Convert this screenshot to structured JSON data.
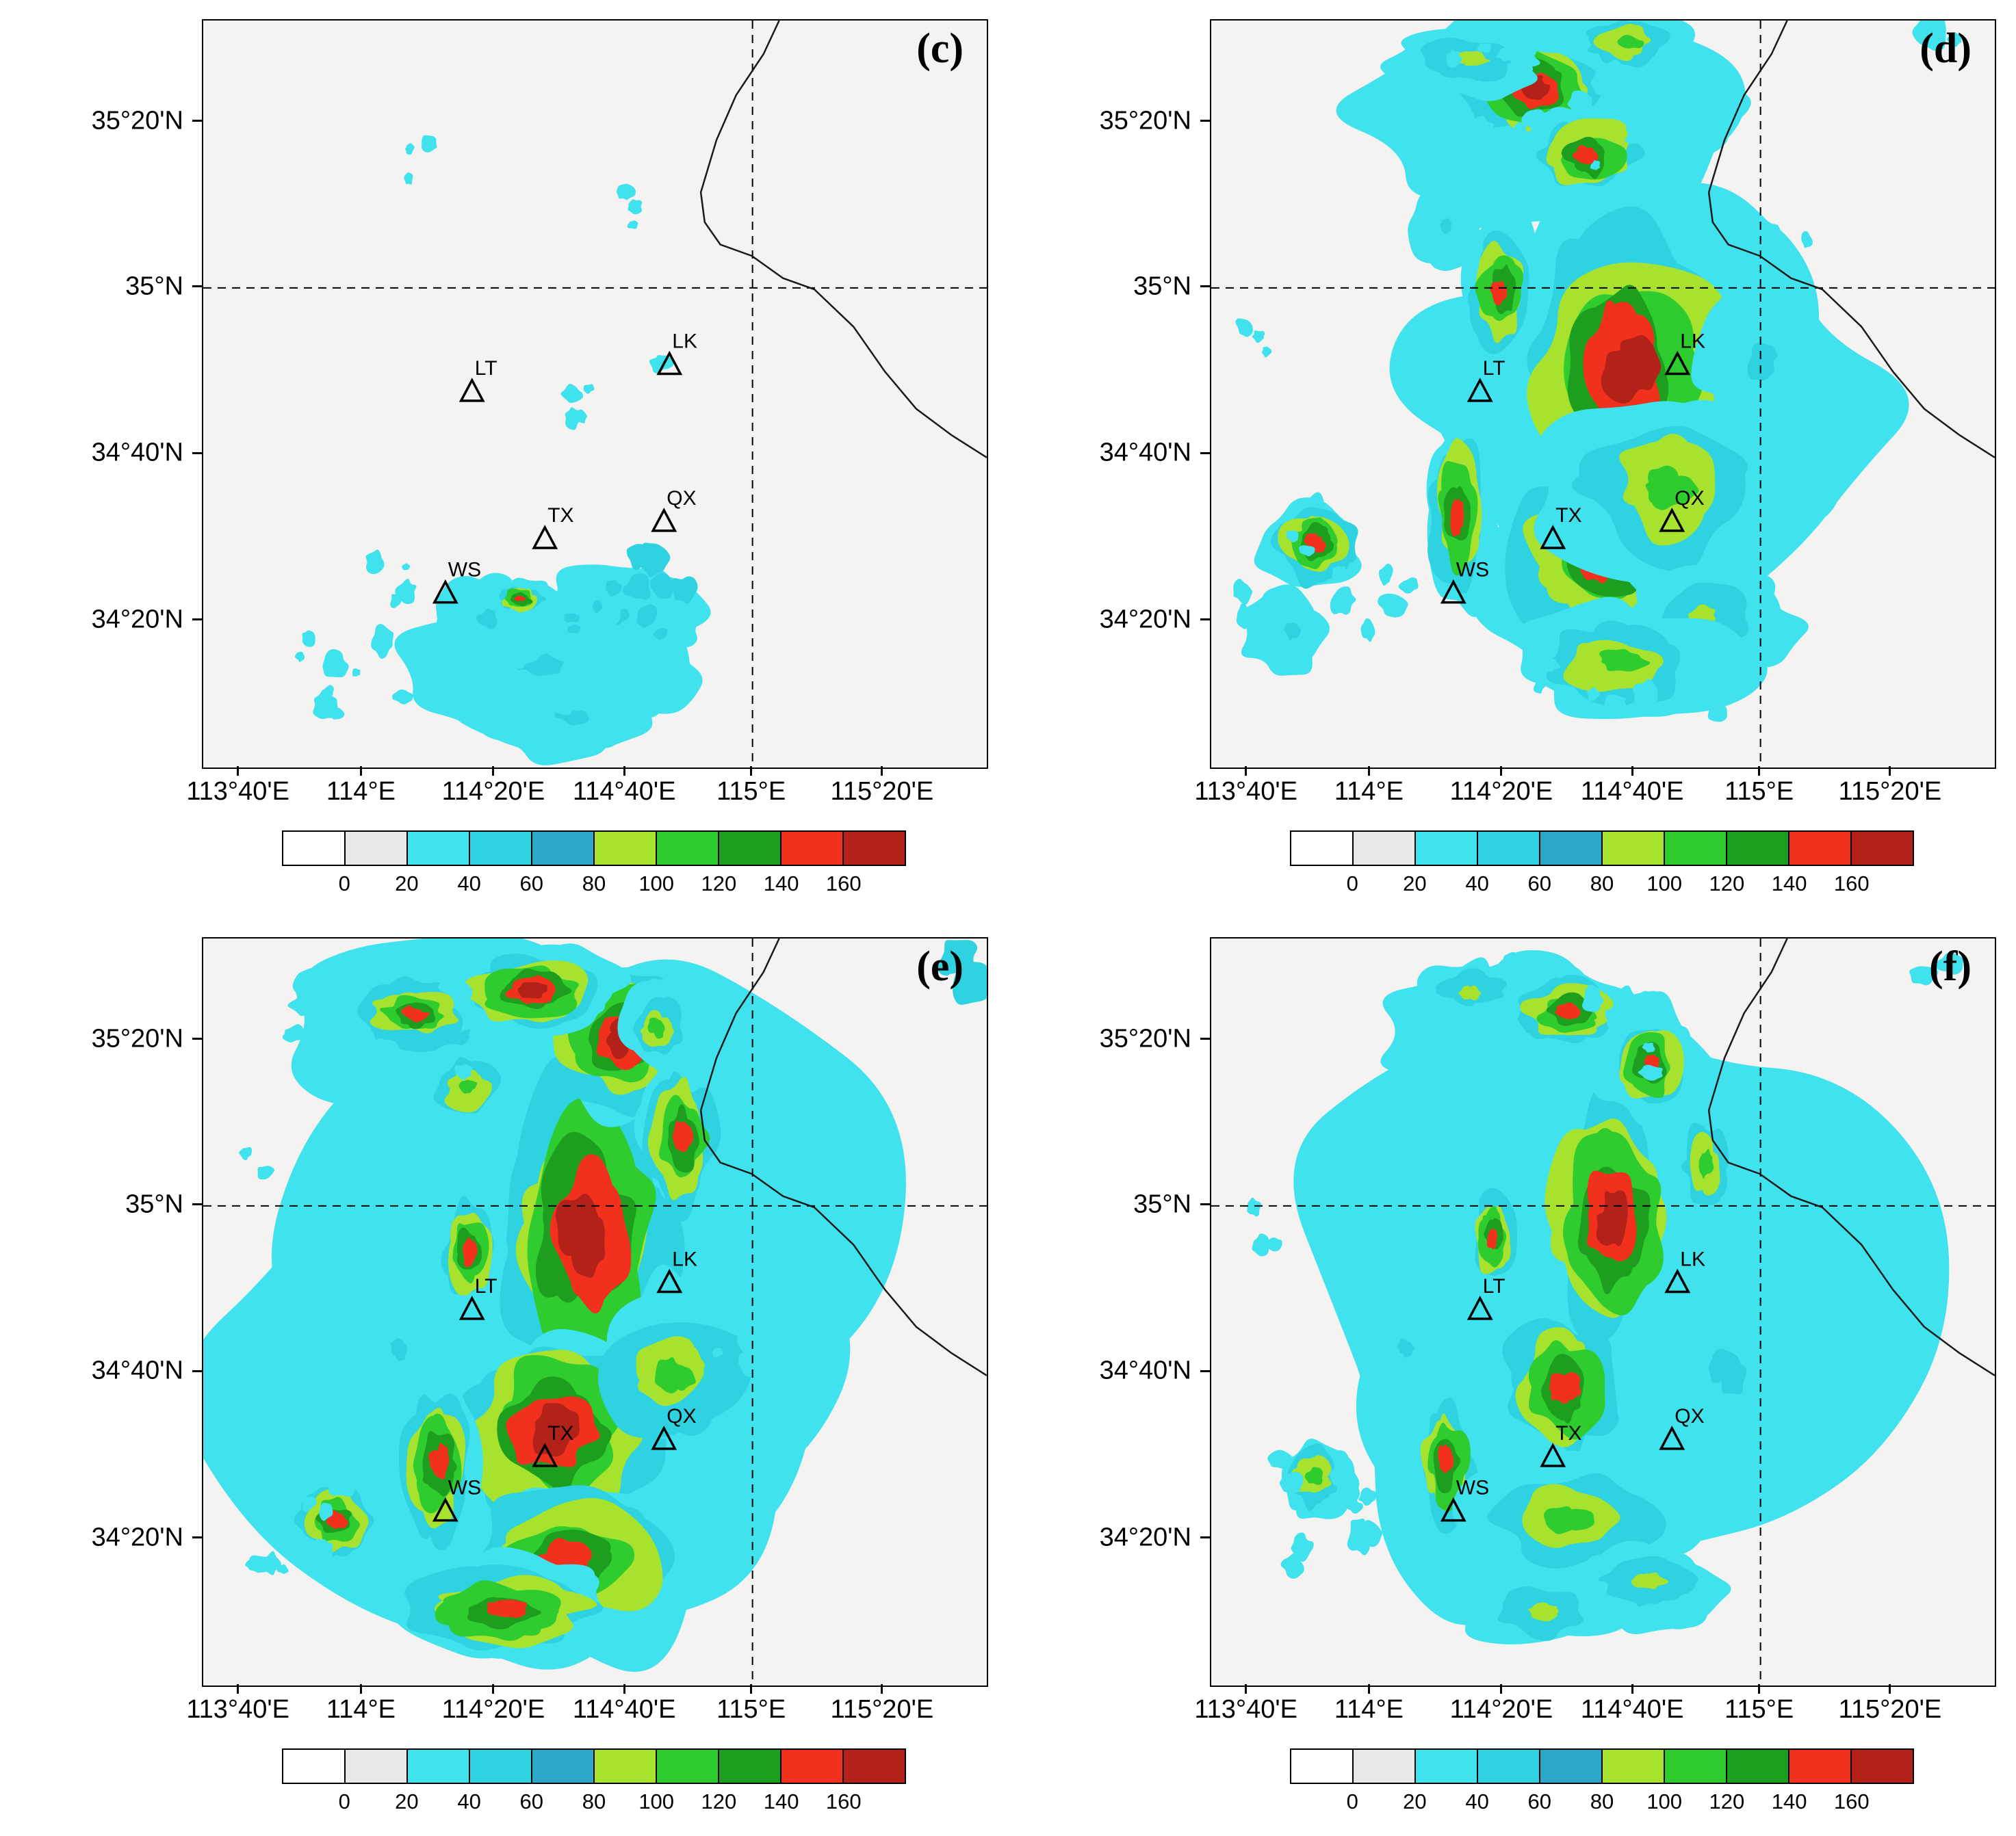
{
  "chart_data": {
    "type": "heatmap",
    "title": "",
    "panels": [
      {
        "label": "(c)",
        "clusters": [
          {
            "x": 0.43,
            "y": 0.87,
            "rx": 0.13,
            "ry": 0.08,
            "m": 3
          },
          {
            "x": 0.52,
            "y": 0.8,
            "rx": 0.09,
            "ry": 0.06,
            "m": 3
          },
          {
            "x": 0.36,
            "y": 0.8,
            "rx": 0.06,
            "ry": 0.05,
            "m": 3
          },
          {
            "x": 0.47,
            "y": 0.93,
            "rx": 0.1,
            "ry": 0.05,
            "m": 3
          },
          {
            "x": 0.56,
            "y": 0.88,
            "rx": 0.06,
            "ry": 0.05,
            "m": 2
          },
          {
            "x": 0.47,
            "y": 0.8,
            "rx": 0.04,
            "ry": 0.03,
            "m": 3
          },
          {
            "x": 0.405,
            "y": 0.775,
            "rx": 0.035,
            "ry": 0.022,
            "m": 8
          }
        ],
        "speckles": [
          {
            "x": 0.42,
            "y": 0.86,
            "rx": 0.22,
            "ry": 0.11,
            "n": 26,
            "l": 2,
            "r": 0.013
          },
          {
            "x": 0.55,
            "y": 0.78,
            "rx": 0.1,
            "ry": 0.08,
            "n": 10,
            "l": 3,
            "r": 0.011
          },
          {
            "x": 0.16,
            "y": 0.84,
            "rx": 0.08,
            "ry": 0.09,
            "n": 8,
            "l": 2,
            "r": 0.011
          },
          {
            "x": 0.28,
            "y": 0.19,
            "rx": 0.025,
            "ry": 0.04,
            "n": 3,
            "l": 2,
            "r": 0.009
          },
          {
            "x": 0.545,
            "y": 0.26,
            "rx": 0.025,
            "ry": 0.045,
            "n": 3,
            "l": 2,
            "r": 0.009
          },
          {
            "x": 0.47,
            "y": 0.52,
            "rx": 0.03,
            "ry": 0.05,
            "n": 4,
            "l": 2,
            "r": 0.009
          },
          {
            "x": 0.6,
            "y": 0.47,
            "rx": 0.02,
            "ry": 0.03,
            "n": 2,
            "l": 2,
            "r": 0.008
          },
          {
            "x": 0.24,
            "y": 0.75,
            "rx": 0.04,
            "ry": 0.04,
            "n": 4,
            "l": 2,
            "r": 0.009
          }
        ]
      },
      {
        "label": "(d)",
        "clusters": [
          {
            "x": 0.55,
            "y": 0.52,
            "rx": 0.27,
            "ry": 0.3,
            "m": 2
          },
          {
            "x": 0.45,
            "y": 0.14,
            "rx": 0.2,
            "ry": 0.13,
            "m": 2
          },
          {
            "x": 0.53,
            "y": 0.47,
            "rx": 0.16,
            "ry": 0.22,
            "m": 9
          },
          {
            "x": 0.5,
            "y": 0.72,
            "rx": 0.12,
            "ry": 0.12,
            "m": 8
          },
          {
            "x": 0.58,
            "y": 0.62,
            "rx": 0.13,
            "ry": 0.12,
            "m": 6
          },
          {
            "x": 0.41,
            "y": 0.09,
            "rx": 0.09,
            "ry": 0.07,
            "m": 9
          },
          {
            "x": 0.48,
            "y": 0.18,
            "rx": 0.07,
            "ry": 0.06,
            "m": 8
          },
          {
            "x": 0.33,
            "y": 0.05,
            "rx": 0.09,
            "ry": 0.045,
            "m": 5
          },
          {
            "x": 0.53,
            "y": 0.03,
            "rx": 0.07,
            "ry": 0.04,
            "m": 6
          },
          {
            "x": 0.37,
            "y": 0.36,
            "rx": 0.045,
            "ry": 0.08,
            "m": 8
          },
          {
            "x": 0.3,
            "y": 0.28,
            "rx": 0.04,
            "ry": 0.05,
            "m": 3
          },
          {
            "x": 0.315,
            "y": 0.66,
            "rx": 0.045,
            "ry": 0.11,
            "m": 8
          },
          {
            "x": 0.13,
            "y": 0.7,
            "rx": 0.055,
            "ry": 0.055,
            "m": 8
          },
          {
            "x": 0.1,
            "y": 0.82,
            "rx": 0.055,
            "ry": 0.05,
            "m": 3
          },
          {
            "x": 0.7,
            "y": 0.45,
            "rx": 0.075,
            "ry": 0.1,
            "m": 3
          },
          {
            "x": 0.63,
            "y": 0.8,
            "rx": 0.09,
            "ry": 0.07,
            "m": 5
          },
          {
            "x": 0.52,
            "y": 0.86,
            "rx": 0.12,
            "ry": 0.07,
            "m": 6
          }
        ],
        "speckles": [
          {
            "x": 0.45,
            "y": 0.13,
            "rx": 0.22,
            "ry": 0.12,
            "n": 18,
            "l": 2,
            "r": 0.013
          },
          {
            "x": 0.15,
            "y": 0.76,
            "rx": 0.12,
            "ry": 0.1,
            "n": 12,
            "l": 2,
            "r": 0.012
          },
          {
            "x": 0.57,
            "y": 0.87,
            "rx": 0.16,
            "ry": 0.07,
            "n": 10,
            "l": 2,
            "r": 0.012
          },
          {
            "x": 0.7,
            "y": 0.3,
            "rx": 0.06,
            "ry": 0.09,
            "n": 6,
            "l": 2,
            "r": 0.011
          },
          {
            "x": 0.93,
            "y": 0.03,
            "rx": 0.04,
            "ry": 0.03,
            "n": 3,
            "l": 2,
            "r": 0.013
          },
          {
            "x": 0.05,
            "y": 0.42,
            "rx": 0.03,
            "ry": 0.05,
            "n": 3,
            "l": 2,
            "r": 0.01
          }
        ]
      },
      {
        "label": "(e)",
        "clusters": [
          {
            "x": 0.46,
            "y": 0.5,
            "rx": 0.34,
            "ry": 0.4,
            "m": 2
          },
          {
            "x": 0.3,
            "y": 0.12,
            "rx": 0.18,
            "ry": 0.1,
            "m": 3
          },
          {
            "x": 0.49,
            "y": 0.4,
            "rx": 0.13,
            "ry": 0.24,
            "m": 9
          },
          {
            "x": 0.45,
            "y": 0.66,
            "rx": 0.13,
            "ry": 0.13,
            "m": 9
          },
          {
            "x": 0.47,
            "y": 0.83,
            "rx": 0.14,
            "ry": 0.09,
            "m": 8
          },
          {
            "x": 0.53,
            "y": 0.13,
            "rx": 0.08,
            "ry": 0.1,
            "m": 9
          },
          {
            "x": 0.42,
            "y": 0.07,
            "rx": 0.09,
            "ry": 0.05,
            "m": 9
          },
          {
            "x": 0.27,
            "y": 0.1,
            "rx": 0.07,
            "ry": 0.045,
            "m": 8
          },
          {
            "x": 0.34,
            "y": 0.2,
            "rx": 0.055,
            "ry": 0.05,
            "m": 6
          },
          {
            "x": 0.61,
            "y": 0.27,
            "rx": 0.05,
            "ry": 0.09,
            "m": 8
          },
          {
            "x": 0.58,
            "y": 0.12,
            "rx": 0.04,
            "ry": 0.05,
            "m": 6
          },
          {
            "x": 0.34,
            "y": 0.42,
            "rx": 0.04,
            "ry": 0.07,
            "m": 8
          },
          {
            "x": 0.3,
            "y": 0.7,
            "rx": 0.05,
            "ry": 0.1,
            "m": 8
          },
          {
            "x": 0.17,
            "y": 0.78,
            "rx": 0.055,
            "ry": 0.05,
            "m": 8
          },
          {
            "x": 0.6,
            "y": 0.58,
            "rx": 0.1,
            "ry": 0.1,
            "m": 6
          },
          {
            "x": 0.38,
            "y": 0.9,
            "rx": 0.12,
            "ry": 0.06,
            "m": 8
          },
          {
            "x": 0.25,
            "y": 0.55,
            "rx": 0.05,
            "ry": 0.06,
            "m": 3
          }
        ],
        "speckles": [
          {
            "x": 0.25,
            "y": 0.12,
            "rx": 0.14,
            "ry": 0.1,
            "n": 14,
            "l": 2,
            "r": 0.013
          },
          {
            "x": 0.14,
            "y": 0.8,
            "rx": 0.1,
            "ry": 0.09,
            "n": 10,
            "l": 2,
            "r": 0.012
          },
          {
            "x": 0.67,
            "y": 0.45,
            "rx": 0.09,
            "ry": 0.14,
            "n": 8,
            "l": 2,
            "r": 0.012
          },
          {
            "x": 0.97,
            "y": 0.05,
            "rx": 0.03,
            "ry": 0.05,
            "n": 3,
            "l": 3,
            "r": 0.016
          },
          {
            "x": 0.08,
            "y": 0.3,
            "rx": 0.03,
            "ry": 0.04,
            "n": 3,
            "l": 2,
            "r": 0.01
          }
        ]
      },
      {
        "label": "(f)",
        "clusters": [
          {
            "x": 0.48,
            "y": 0.52,
            "rx": 0.31,
            "ry": 0.38,
            "m": 2
          },
          {
            "x": 0.4,
            "y": 0.12,
            "rx": 0.16,
            "ry": 0.1,
            "m": 3
          },
          {
            "x": 0.51,
            "y": 0.38,
            "rx": 0.09,
            "ry": 0.17,
            "m": 9
          },
          {
            "x": 0.45,
            "y": 0.6,
            "rx": 0.08,
            "ry": 0.1,
            "m": 8
          },
          {
            "x": 0.46,
            "y": 0.1,
            "rx": 0.07,
            "ry": 0.05,
            "m": 8
          },
          {
            "x": 0.56,
            "y": 0.17,
            "rx": 0.055,
            "ry": 0.065,
            "m": 8
          },
          {
            "x": 0.33,
            "y": 0.07,
            "rx": 0.06,
            "ry": 0.04,
            "m": 5
          },
          {
            "x": 0.63,
            "y": 0.3,
            "rx": 0.04,
            "ry": 0.07,
            "m": 6
          },
          {
            "x": 0.36,
            "y": 0.4,
            "rx": 0.03,
            "ry": 0.06,
            "m": 8
          },
          {
            "x": 0.3,
            "y": 0.7,
            "rx": 0.04,
            "ry": 0.09,
            "m": 8
          },
          {
            "x": 0.46,
            "y": 0.78,
            "rx": 0.12,
            "ry": 0.08,
            "m": 6
          },
          {
            "x": 0.56,
            "y": 0.86,
            "rx": 0.09,
            "ry": 0.05,
            "m": 5
          },
          {
            "x": 0.13,
            "y": 0.72,
            "rx": 0.05,
            "ry": 0.05,
            "m": 6
          },
          {
            "x": 0.66,
            "y": 0.58,
            "rx": 0.11,
            "ry": 0.12,
            "m": 3
          },
          {
            "x": 0.25,
            "y": 0.55,
            "rx": 0.04,
            "ry": 0.05,
            "m": 3
          },
          {
            "x": 0.42,
            "y": 0.9,
            "rx": 0.1,
            "ry": 0.05,
            "m": 5
          }
        ],
        "speckles": [
          {
            "x": 0.42,
            "y": 0.13,
            "rx": 0.18,
            "ry": 0.11,
            "n": 14,
            "l": 2,
            "r": 0.012
          },
          {
            "x": 0.15,
            "y": 0.76,
            "rx": 0.1,
            "ry": 0.09,
            "n": 10,
            "l": 2,
            "r": 0.011
          },
          {
            "x": 0.6,
            "y": 0.7,
            "rx": 0.12,
            "ry": 0.1,
            "n": 8,
            "l": 2,
            "r": 0.011
          },
          {
            "x": 0.93,
            "y": 0.04,
            "rx": 0.03,
            "ry": 0.03,
            "n": 2,
            "l": 2,
            "r": 0.012
          },
          {
            "x": 0.07,
            "y": 0.4,
            "rx": 0.03,
            "ry": 0.05,
            "n": 3,
            "l": 2,
            "r": 0.009
          }
        ]
      }
    ],
    "lat_ticks": [
      {
        "label": "35°20'N",
        "f": 0.136
      },
      {
        "label": "35°N",
        "f": 0.358
      },
      {
        "label": "34°40'N",
        "f": 0.581
      },
      {
        "label": "34°20'N",
        "f": 0.804
      }
    ],
    "lon_ticks": [
      {
        "label": "113°40'E",
        "f": 0.046
      },
      {
        "label": "114°E",
        "f": 0.203
      },
      {
        "label": "114°20'E",
        "f": 0.372
      },
      {
        "label": "114°40'E",
        "f": 0.539
      },
      {
        "label": "115°E",
        "f": 0.701
      },
      {
        "label": "115°20'E",
        "f": 0.868
      }
    ],
    "gridlines": {
      "horizontal_f": 0.358,
      "vertical_f": 0.701
    },
    "stations": [
      {
        "name": "LT",
        "x": 0.343,
        "y": 0.498
      },
      {
        "name": "LK",
        "x": 0.595,
        "y": 0.462
      },
      {
        "name": "TX",
        "x": 0.436,
        "y": 0.695
      },
      {
        "name": "QX",
        "x": 0.588,
        "y": 0.672
      },
      {
        "name": "WS",
        "x": 0.309,
        "y": 0.768
      }
    ],
    "boundary": [
      [
        0.735,
        0.0
      ],
      [
        0.715,
        0.045
      ],
      [
        0.68,
        0.1
      ],
      [
        0.655,
        0.16
      ],
      [
        0.635,
        0.23
      ],
      [
        0.64,
        0.27
      ],
      [
        0.66,
        0.3
      ],
      [
        0.7,
        0.315
      ],
      [
        0.74,
        0.345
      ],
      [
        0.78,
        0.36
      ],
      [
        0.83,
        0.41
      ],
      [
        0.87,
        0.47
      ],
      [
        0.91,
        0.52
      ],
      [
        0.955,
        0.555
      ],
      [
        1.0,
        0.585
      ]
    ],
    "colorbar": {
      "tick_labels": [
        "0",
        "20",
        "40",
        "60",
        "80",
        "100",
        "120",
        "140",
        "160"
      ],
      "colors": [
        "#ffffff",
        "#e8e8e8",
        "#40e2ee",
        "#2ed2e0",
        "#2ba8c8",
        "#a6e22e",
        "#2ecc2e",
        "#1e9e1e",
        "#f2301e",
        "#b22218"
      ]
    }
  }
}
